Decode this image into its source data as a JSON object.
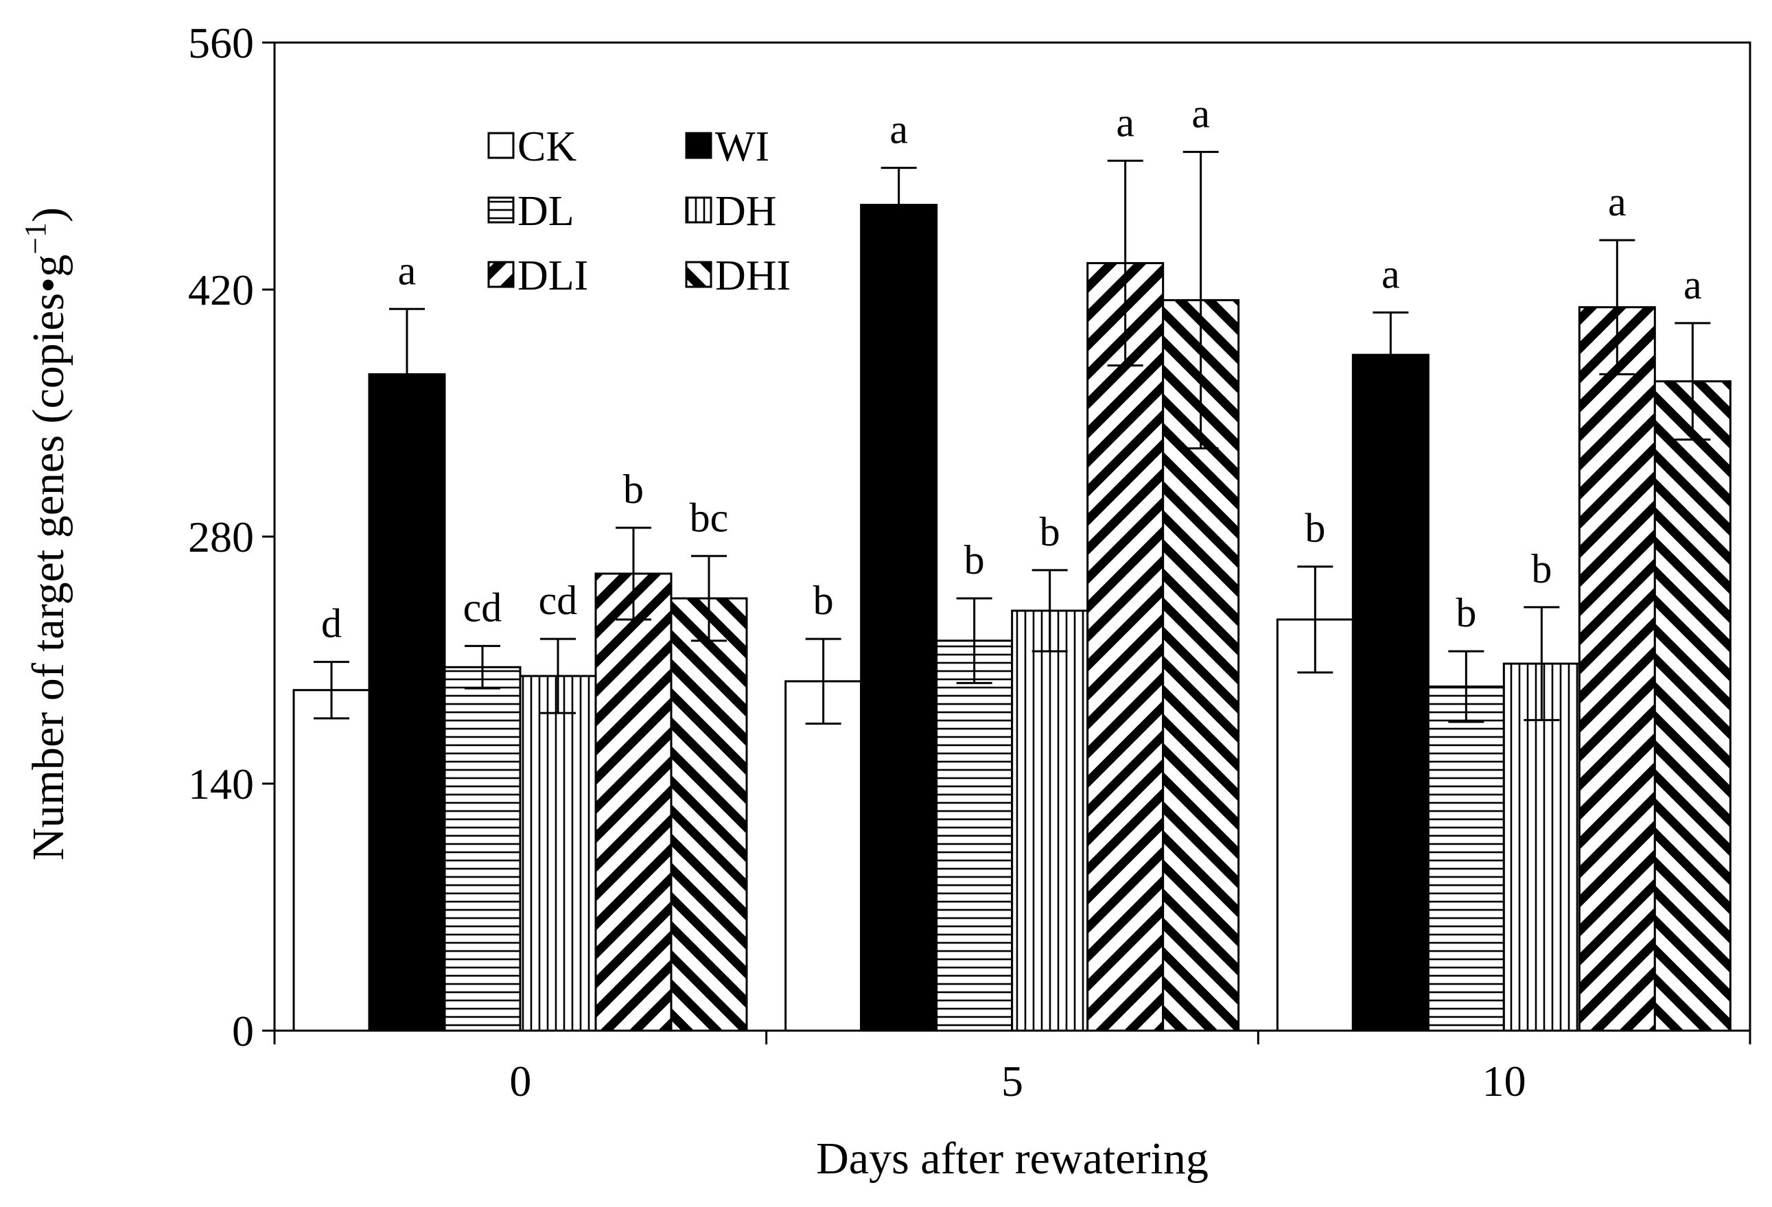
{
  "chart_data": {
    "type": "bar",
    "title": "",
    "xlabel": "Days after rewatering",
    "ylabel": "Number of target genes (copies•g",
    "ylabel_superscript": "−1",
    "ylabel_close": ")",
    "ylim": [
      0,
      560
    ],
    "yticks": [
      0,
      140,
      280,
      420,
      560
    ],
    "grid": false,
    "legend_position": "top-left",
    "categories": [
      "0",
      "5",
      "10"
    ],
    "series": [
      {
        "name": "CK",
        "pattern": "open",
        "values": [
          193,
          198,
          233
        ],
        "errors": [
          16,
          24,
          30
        ],
        "letters": [
          "d",
          "b",
          "b"
        ]
      },
      {
        "name": "WI",
        "pattern": "solid",
        "values": [
          372,
          468,
          383
        ],
        "errors": [
          37,
          21,
          24
        ],
        "letters": [
          "a",
          "a",
          "a"
        ]
      },
      {
        "name": "DL",
        "pattern": "horizontal",
        "values": [
          206,
          221,
          195
        ],
        "errors": [
          12,
          24,
          20
        ],
        "letters": [
          "cd",
          "b",
          "b"
        ]
      },
      {
        "name": "DH",
        "pattern": "vertical",
        "values": [
          201,
          238,
          208
        ],
        "errors": [
          21,
          23,
          32
        ],
        "letters": [
          "cd",
          "b",
          "b"
        ]
      },
      {
        "name": "DLI",
        "pattern": "backslash",
        "values": [
          259,
          435,
          410
        ],
        "errors": [
          26,
          58,
          38
        ],
        "letters": [
          "b",
          "a",
          "a"
        ]
      },
      {
        "name": "DHI",
        "pattern": "slash",
        "values": [
          245,
          414,
          368
        ],
        "errors": [
          24,
          84,
          33
        ],
        "letters": [
          "bc",
          "a",
          "a"
        ]
      }
    ]
  }
}
